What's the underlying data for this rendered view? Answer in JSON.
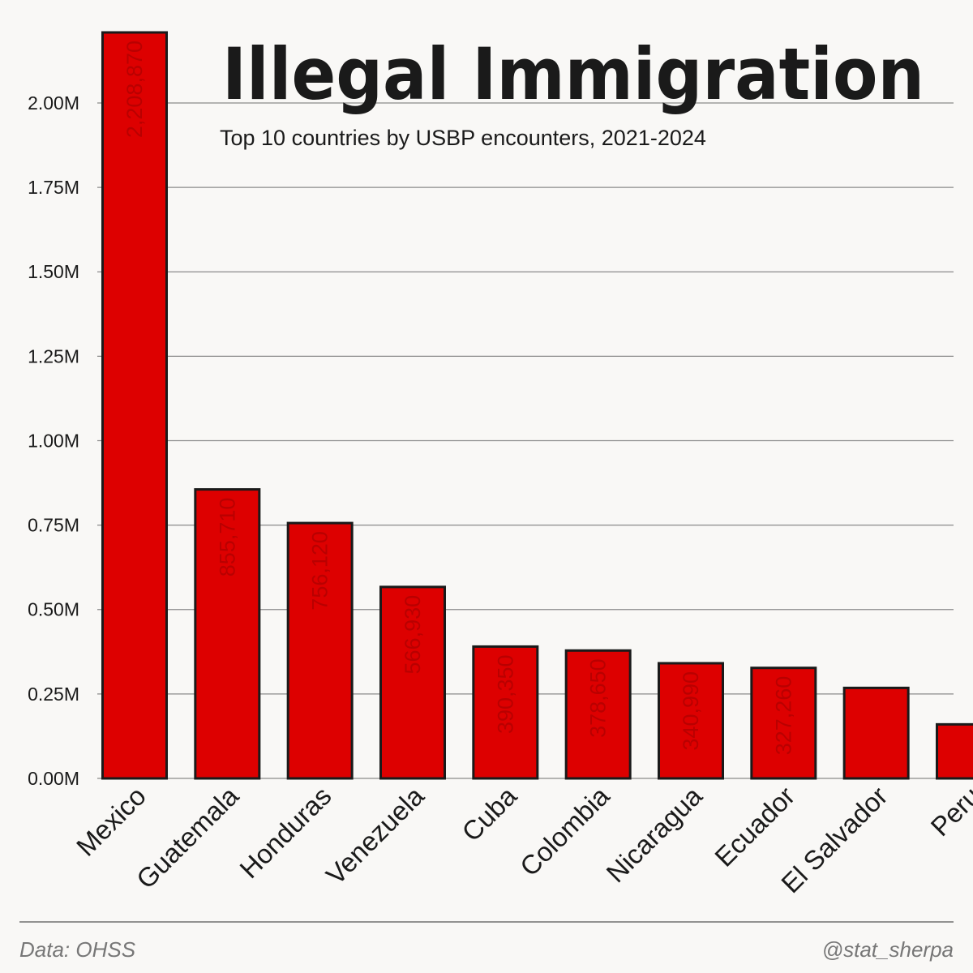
{
  "chart_data": {
    "type": "bar",
    "title": "Illegal Immigration",
    "subtitle": "Top 10 countries by USBP encounters, 2021-2024",
    "categories": [
      "Mexico",
      "Guatemala",
      "Honduras",
      "Venezuela",
      "Cuba",
      "Colombia",
      "Nicaragua",
      "Ecuador",
      "El Salvador",
      "Peru"
    ],
    "values": [
      2208870,
      855710,
      756120,
      566930,
      390350,
      378650,
      340990,
      327260,
      268000,
      160000
    ],
    "value_labels": [
      "2,208,870",
      "855,710",
      "756,120",
      "566,930",
      "390,350",
      "378,650",
      "340,990",
      "327,260",
      "",
      ""
    ],
    "y_ticks": [
      {
        "value": 0,
        "label": "0.00M"
      },
      {
        "value": 250000,
        "label": "0.25M"
      },
      {
        "value": 500000,
        "label": "0.50M"
      },
      {
        "value": 750000,
        "label": "0.75M"
      },
      {
        "value": 1000000,
        "label": "1.00M"
      },
      {
        "value": 1250000,
        "label": "1.25M"
      },
      {
        "value": 1500000,
        "label": "1.50M"
      },
      {
        "value": 1750000,
        "label": "1.75M"
      },
      {
        "value": 2000000,
        "label": "2.00M"
      }
    ],
    "ylim": [
      0,
      2208870
    ],
    "xlabel": "",
    "ylabel": "",
    "grid": true,
    "colors": {
      "bar": "#dd0000",
      "edge": "#1a1a1a",
      "background": "#f9f8f6"
    }
  },
  "footer": {
    "source": "Data: OHSS",
    "credit": "@stat_sherpa"
  }
}
